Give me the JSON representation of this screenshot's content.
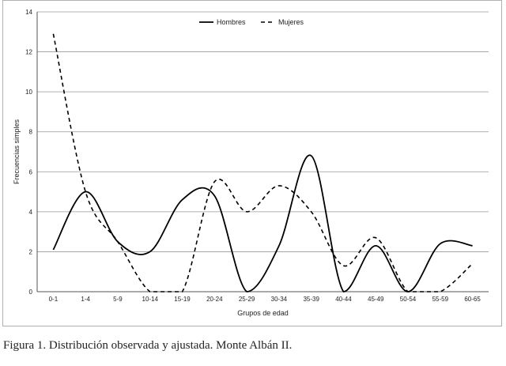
{
  "caption": "Figura 1. Distribución observada y ajustada. Monte Albán II.",
  "chart_data": {
    "type": "line",
    "xlabel": "Grupos de edad",
    "ylabel": "Frecuencias simples",
    "categories": [
      "0-1",
      "1-4",
      "5-9",
      "10-14",
      "15-19",
      "20-24",
      "25-29",
      "30-34",
      "35-39",
      "40-44",
      "45-49",
      "50-54",
      "55-59",
      "60-65"
    ],
    "ylim": [
      0,
      14
    ],
    "yticks": [
      0,
      2,
      4,
      6,
      8,
      10,
      12,
      14
    ],
    "grid": true,
    "legend_position": "top-center",
    "series": [
      {
        "name": "Hombres",
        "style": "solid",
        "color": "#000000",
        "values": [
          2.1,
          5.0,
          2.5,
          2.0,
          4.6,
          4.8,
          0.0,
          2.3,
          6.8,
          0.0,
          2.3,
          0.0,
          2.4,
          2.3
        ]
      },
      {
        "name": "Mujeres",
        "style": "dashed",
        "color": "#000000",
        "values": [
          12.9,
          5.0,
          2.5,
          0.0,
          0.0,
          5.5,
          4.0,
          5.3,
          4.0,
          1.3,
          2.7,
          0.0,
          0.0,
          1.4
        ]
      }
    ]
  }
}
